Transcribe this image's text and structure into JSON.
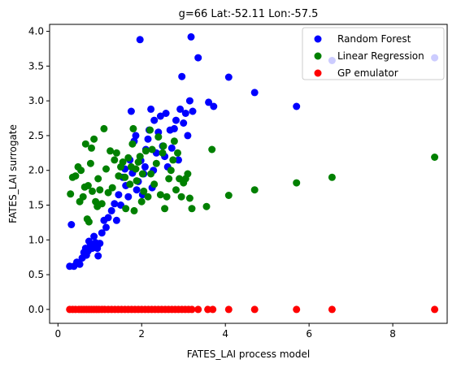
{
  "chart_data": {
    "type": "scatter",
    "title": "g=66 Lat:-52.11 Lon:-57.5",
    "xlabel": "FATES_LAI process model",
    "ylabel": "FATES_LAI surrogate",
    "xlim": [
      -0.2,
      9.3
    ],
    "ylim": [
      -0.2,
      4.1
    ],
    "xticks": [
      "0",
      "2",
      "4",
      "6",
      "8"
    ],
    "yticks": [
      "0.0",
      "0.5",
      "1.0",
      "1.5",
      "2.0",
      "2.5",
      "3.0",
      "3.5",
      "4.0"
    ],
    "legend_position": "top-right",
    "series": [
      {
        "name": "Random Forest",
        "color": "#0000ff",
        "points": [
          [
            0.28,
            0.62
          ],
          [
            0.32,
            1.22
          ],
          [
            0.38,
            0.62
          ],
          [
            0.45,
            0.68
          ],
          [
            0.52,
            0.65
          ],
          [
            0.58,
            0.74
          ],
          [
            0.62,
            0.82
          ],
          [
            0.66,
            0.88
          ],
          [
            0.68,
            0.78
          ],
          [
            0.72,
            0.84
          ],
          [
            0.74,
            0.98
          ],
          [
            0.78,
            0.92
          ],
          [
            0.82,
            0.88
          ],
          [
            0.86,
            1.05
          ],
          [
            0.9,
            0.96
          ],
          [
            0.94,
            0.88
          ],
          [
            0.96,
            0.77
          ],
          [
            1.0,
            0.95
          ],
          [
            1.05,
            1.1
          ],
          [
            1.1,
            1.28
          ],
          [
            1.15,
            1.18
          ],
          [
            1.2,
            1.32
          ],
          [
            1.28,
            1.42
          ],
          [
            1.35,
            1.52
          ],
          [
            1.4,
            1.28
          ],
          [
            1.45,
            1.65
          ],
          [
            1.5,
            1.5
          ],
          [
            1.55,
            1.9
          ],
          [
            1.6,
            2.02
          ],
          [
            1.62,
            1.78
          ],
          [
            1.68,
            1.62
          ],
          [
            1.72,
            2.15
          ],
          [
            1.75,
            2.85
          ],
          [
            1.78,
            1.96
          ],
          [
            1.82,
            2.42
          ],
          [
            1.86,
            2.5
          ],
          [
            1.88,
            1.72
          ],
          [
            1.92,
            1.84
          ],
          [
            1.96,
            3.88
          ],
          [
            1.98,
            2.14
          ],
          [
            2.02,
            1.65
          ],
          [
            2.05,
            1.95
          ],
          [
            2.08,
            2.05
          ],
          [
            2.1,
            2.3
          ],
          [
            2.15,
            2.45
          ],
          [
            2.18,
            2.58
          ],
          [
            2.22,
            2.88
          ],
          [
            2.25,
            1.75
          ],
          [
            2.28,
            2.0
          ],
          [
            2.3,
            2.72
          ],
          [
            2.35,
            2.25
          ],
          [
            2.4,
            2.55
          ],
          [
            2.45,
            2.78
          ],
          [
            2.5,
            2.35
          ],
          [
            2.55,
            2.2
          ],
          [
            2.58,
            2.82
          ],
          [
            2.62,
            2.05
          ],
          [
            2.68,
            2.58
          ],
          [
            2.72,
            2.32
          ],
          [
            2.78,
            2.6
          ],
          [
            2.82,
            2.72
          ],
          [
            2.88,
            2.15
          ],
          [
            2.92,
            2.88
          ],
          [
            2.96,
            3.35
          ],
          [
            3.0,
            2.68
          ],
          [
            3.05,
            2.82
          ],
          [
            3.1,
            2.5
          ],
          [
            3.15,
            3.0
          ],
          [
            3.18,
            3.92
          ],
          [
            3.22,
            2.85
          ],
          [
            3.35,
            3.62
          ],
          [
            3.6,
            2.98
          ],
          [
            3.72,
            2.92
          ],
          [
            4.08,
            3.34
          ],
          [
            4.7,
            3.12
          ],
          [
            5.7,
            2.92
          ],
          [
            6.55,
            3.58
          ],
          [
            9.0,
            3.62
          ]
        ]
      },
      {
        "name": "Linear Regression",
        "color": "#008000",
        "points": [
          [
            0.3,
            1.66
          ],
          [
            0.35,
            1.9
          ],
          [
            0.42,
            1.92
          ],
          [
            0.48,
            2.05
          ],
          [
            0.52,
            1.55
          ],
          [
            0.55,
            2.0
          ],
          [
            0.6,
            1.62
          ],
          [
            0.64,
            1.76
          ],
          [
            0.66,
            2.38
          ],
          [
            0.7,
            1.3
          ],
          [
            0.72,
            1.78
          ],
          [
            0.74,
            1.26
          ],
          [
            0.78,
            2.1
          ],
          [
            0.8,
            2.32
          ],
          [
            0.82,
            1.7
          ],
          [
            0.86,
            2.45
          ],
          [
            0.9,
            1.55
          ],
          [
            0.94,
            1.48
          ],
          [
            0.96,
            1.88
          ],
          [
            1.0,
            1.72
          ],
          [
            1.05,
            1.52
          ],
          [
            1.1,
            2.6
          ],
          [
            1.15,
            2.02
          ],
          [
            1.2,
            1.68
          ],
          [
            1.25,
            2.28
          ],
          [
            1.3,
            1.75
          ],
          [
            1.35,
            2.15
          ],
          [
            1.4,
            2.25
          ],
          [
            1.45,
            1.92
          ],
          [
            1.5,
            2.05
          ],
          [
            1.55,
            2.12
          ],
          [
            1.6,
            1.9
          ],
          [
            1.62,
            1.45
          ],
          [
            1.68,
            2.18
          ],
          [
            1.72,
            1.8
          ],
          [
            1.75,
            2.05
          ],
          [
            1.78,
            2.38
          ],
          [
            1.8,
            2.6
          ],
          [
            1.82,
            1.42
          ],
          [
            1.86,
            2.02
          ],
          [
            1.88,
            1.85
          ],
          [
            1.92,
            2.12
          ],
          [
            1.96,
            2.2
          ],
          [
            2.0,
            1.55
          ],
          [
            2.02,
            1.95
          ],
          [
            2.05,
            1.7
          ],
          [
            2.1,
            2.28
          ],
          [
            2.15,
            1.62
          ],
          [
            2.2,
            2.58
          ],
          [
            2.22,
            1.95
          ],
          [
            2.25,
            2.3
          ],
          [
            2.3,
            1.8
          ],
          [
            2.35,
            2.1
          ],
          [
            2.4,
            2.48
          ],
          [
            2.45,
            1.65
          ],
          [
            2.5,
            2.25
          ],
          [
            2.52,
            2.35
          ],
          [
            2.55,
            1.45
          ],
          [
            2.6,
            1.62
          ],
          [
            2.65,
            1.88
          ],
          [
            2.7,
            2.0
          ],
          [
            2.75,
            2.15
          ],
          [
            2.78,
            2.42
          ],
          [
            2.82,
            1.72
          ],
          [
            2.86,
            2.25
          ],
          [
            2.9,
            1.88
          ],
          [
            2.95,
            1.62
          ],
          [
            3.0,
            1.82
          ],
          [
            3.05,
            1.88
          ],
          [
            3.1,
            1.95
          ],
          [
            3.15,
            1.6
          ],
          [
            3.2,
            1.45
          ],
          [
            3.55,
            1.48
          ],
          [
            3.68,
            2.3
          ],
          [
            4.08,
            1.64
          ],
          [
            4.7,
            1.72
          ],
          [
            5.7,
            1.82
          ],
          [
            6.55,
            1.9
          ],
          [
            9.0,
            2.19
          ]
        ]
      },
      {
        "name": "GP emulator",
        "color": "#ff0000",
        "points": [
          [
            0.28,
            0
          ],
          [
            0.35,
            0
          ],
          [
            0.42,
            0
          ],
          [
            0.5,
            0
          ],
          [
            0.56,
            0
          ],
          [
            0.62,
            0
          ],
          [
            0.68,
            0
          ],
          [
            0.74,
            0
          ],
          [
            0.8,
            0
          ],
          [
            0.86,
            0
          ],
          [
            0.92,
            0
          ],
          [
            0.98,
            0
          ],
          [
            1.05,
            0
          ],
          [
            1.12,
            0
          ],
          [
            1.2,
            0
          ],
          [
            1.28,
            0
          ],
          [
            1.36,
            0
          ],
          [
            1.44,
            0
          ],
          [
            1.52,
            0
          ],
          [
            1.6,
            0
          ],
          [
            1.68,
            0
          ],
          [
            1.76,
            0
          ],
          [
            1.84,
            0
          ],
          [
            1.92,
            0
          ],
          [
            2.0,
            0
          ],
          [
            2.08,
            0
          ],
          [
            2.16,
            0
          ],
          [
            2.24,
            0
          ],
          [
            2.32,
            0
          ],
          [
            2.4,
            0
          ],
          [
            2.48,
            0
          ],
          [
            2.56,
            0
          ],
          [
            2.64,
            0
          ],
          [
            2.72,
            0
          ],
          [
            2.8,
            0
          ],
          [
            2.88,
            0
          ],
          [
            2.96,
            0
          ],
          [
            3.04,
            0
          ],
          [
            3.12,
            0
          ],
          [
            3.2,
            0
          ],
          [
            3.35,
            0
          ],
          [
            3.58,
            0
          ],
          [
            3.7,
            0
          ],
          [
            4.08,
            0
          ],
          [
            4.7,
            0
          ],
          [
            5.7,
            0
          ],
          [
            6.55,
            0
          ],
          [
            9.0,
            0
          ]
        ]
      }
    ]
  }
}
